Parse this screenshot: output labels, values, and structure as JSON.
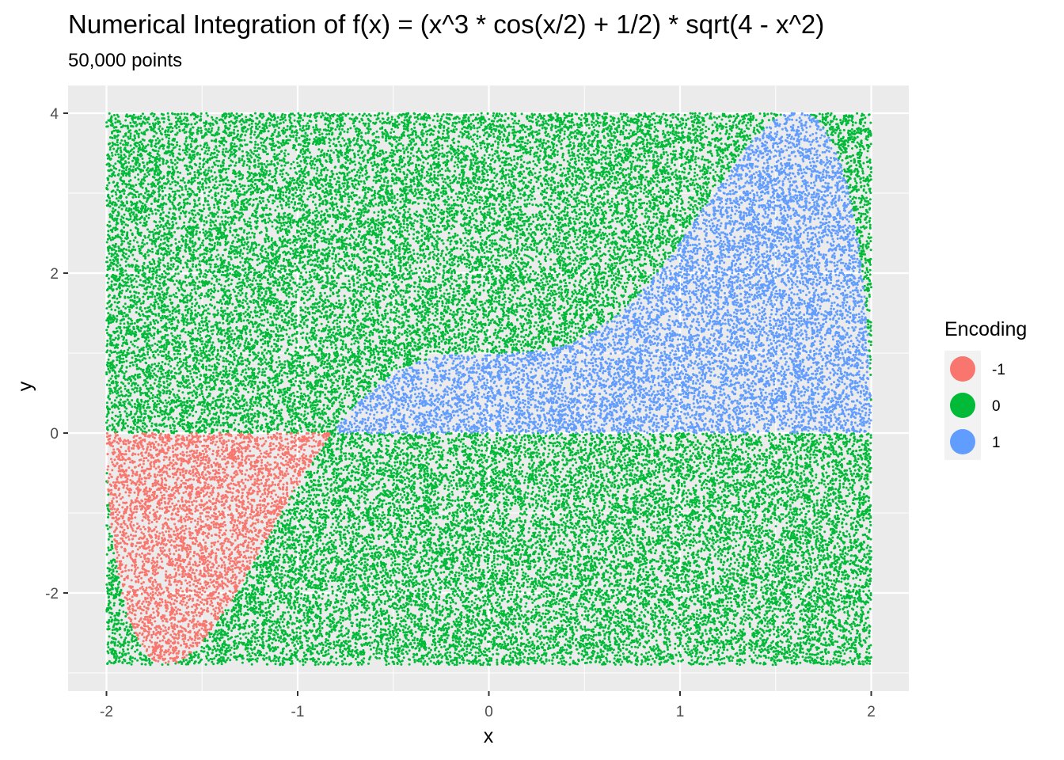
{
  "chart_data": {
    "type": "scatter",
    "title": "Numerical Integration of f(x) = (x^3 * cos(x/2) + 1/2) * sqrt(4 - x^2)",
    "subtitle": "50,000 points",
    "xlabel": "x",
    "ylabel": "y",
    "xlim": [
      -2,
      2
    ],
    "ylim": [
      -2.9,
      4.0
    ],
    "x_ticks": [
      -2,
      -1,
      0,
      1,
      2
    ],
    "y_ticks": [
      -2,
      0,
      2,
      4
    ],
    "x_tick_labels": [
      "-2",
      "-1",
      "0",
      "1",
      "2"
    ],
    "y_tick_labels": [
      "-2",
      "0",
      "2",
      "4"
    ],
    "n_points": 50000,
    "function": "(x^3 * cos(x/2) + 1/2) * sqrt(4 - x^2)",
    "legend": {
      "title": "Encoding",
      "placement": "right",
      "entries": [
        {
          "label": "-1",
          "value": -1,
          "color": "#F8766D"
        },
        {
          "label": "0",
          "value": 0,
          "color": "#00BA38"
        },
        {
          "label": "1",
          "value": 1,
          "color": "#619CFF"
        }
      ]
    },
    "grid": true,
    "panel_background": "#EBEBEB",
    "grid_color": "#FFFFFF"
  }
}
